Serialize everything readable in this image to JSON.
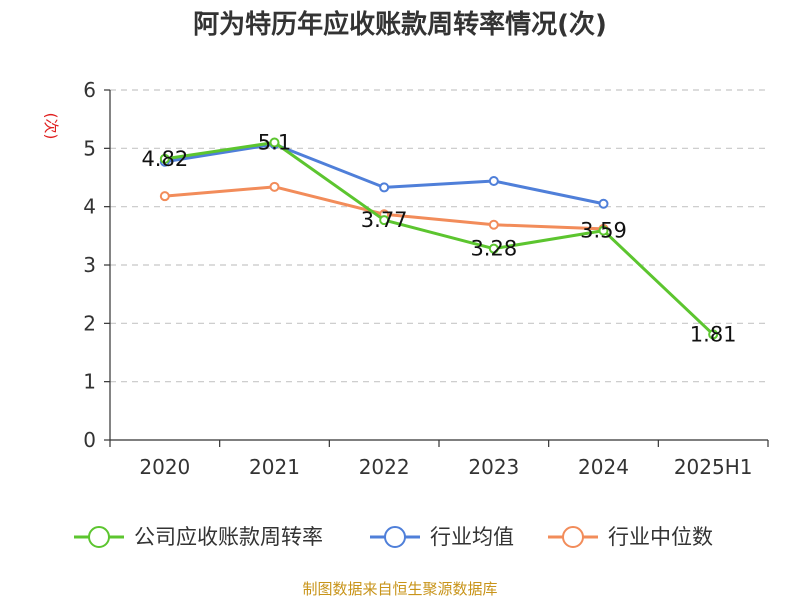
{
  "chart_data": {
    "type": "line",
    "title": "阿为特历年应收账款周转率情况(次)",
    "ylabel": "(次)",
    "xlabel": "",
    "categories": [
      "2020",
      "2021",
      "2022",
      "2023",
      "2024",
      "2025H1"
    ],
    "y_ticks": [
      "0",
      "1",
      "2",
      "3",
      "4",
      "5",
      "6"
    ],
    "ylim": [
      0,
      6
    ],
    "grid": "horizontal dashed",
    "legend_position": "bottom",
    "series": [
      {
        "name": "公司应收账款周转率",
        "color": "#5cc52f",
        "values": [
          4.82,
          5.1,
          3.77,
          3.28,
          3.59,
          1.81
        ],
        "labels": [
          "4.82",
          "5.1",
          "3.77",
          "3.28",
          "3.59",
          "1.81"
        ]
      },
      {
        "name": "行业均值",
        "color": "#4f7fd9",
        "values": [
          4.77,
          5.07,
          4.33,
          4.44,
          4.05,
          null
        ]
      },
      {
        "name": "行业中位数",
        "color": "#f28c5a",
        "values": [
          4.18,
          4.34,
          3.87,
          3.69,
          3.62,
          null
        ]
      }
    ]
  },
  "footer": {
    "source": "制图数据来自恒生聚源数据库"
  }
}
